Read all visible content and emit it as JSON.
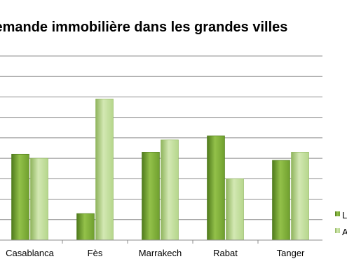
{
  "chart_data": {
    "type": "bar",
    "title": "Demande immobilière dans les grandes villes",
    "categories": [
      "Casablanca",
      "Fès",
      "Marrakech",
      "Rabat",
      "Tanger"
    ],
    "series": [
      {
        "name": "L",
        "values": [
          4.2,
          1.3,
          4.3,
          5.1,
          3.9
        ]
      },
      {
        "name": "A",
        "values": [
          4.0,
          6.9,
          4.9,
          3.0,
          4.3
        ]
      }
    ],
    "ylim": [
      0,
      9
    ],
    "grid": true,
    "legend_position": "right",
    "xlabel": "",
    "ylabel": ""
  },
  "colors": {
    "series_0": "#6f9f2e",
    "series_0_light": "#93c14a",
    "series_0_dark": "#4f7a1c",
    "series_1": "#b5d68b",
    "series_1_light": "#d3e8b3",
    "series_1_dark": "#8fb45d",
    "gridline": "#8c8c8c",
    "axis": "#8c8c8c"
  }
}
